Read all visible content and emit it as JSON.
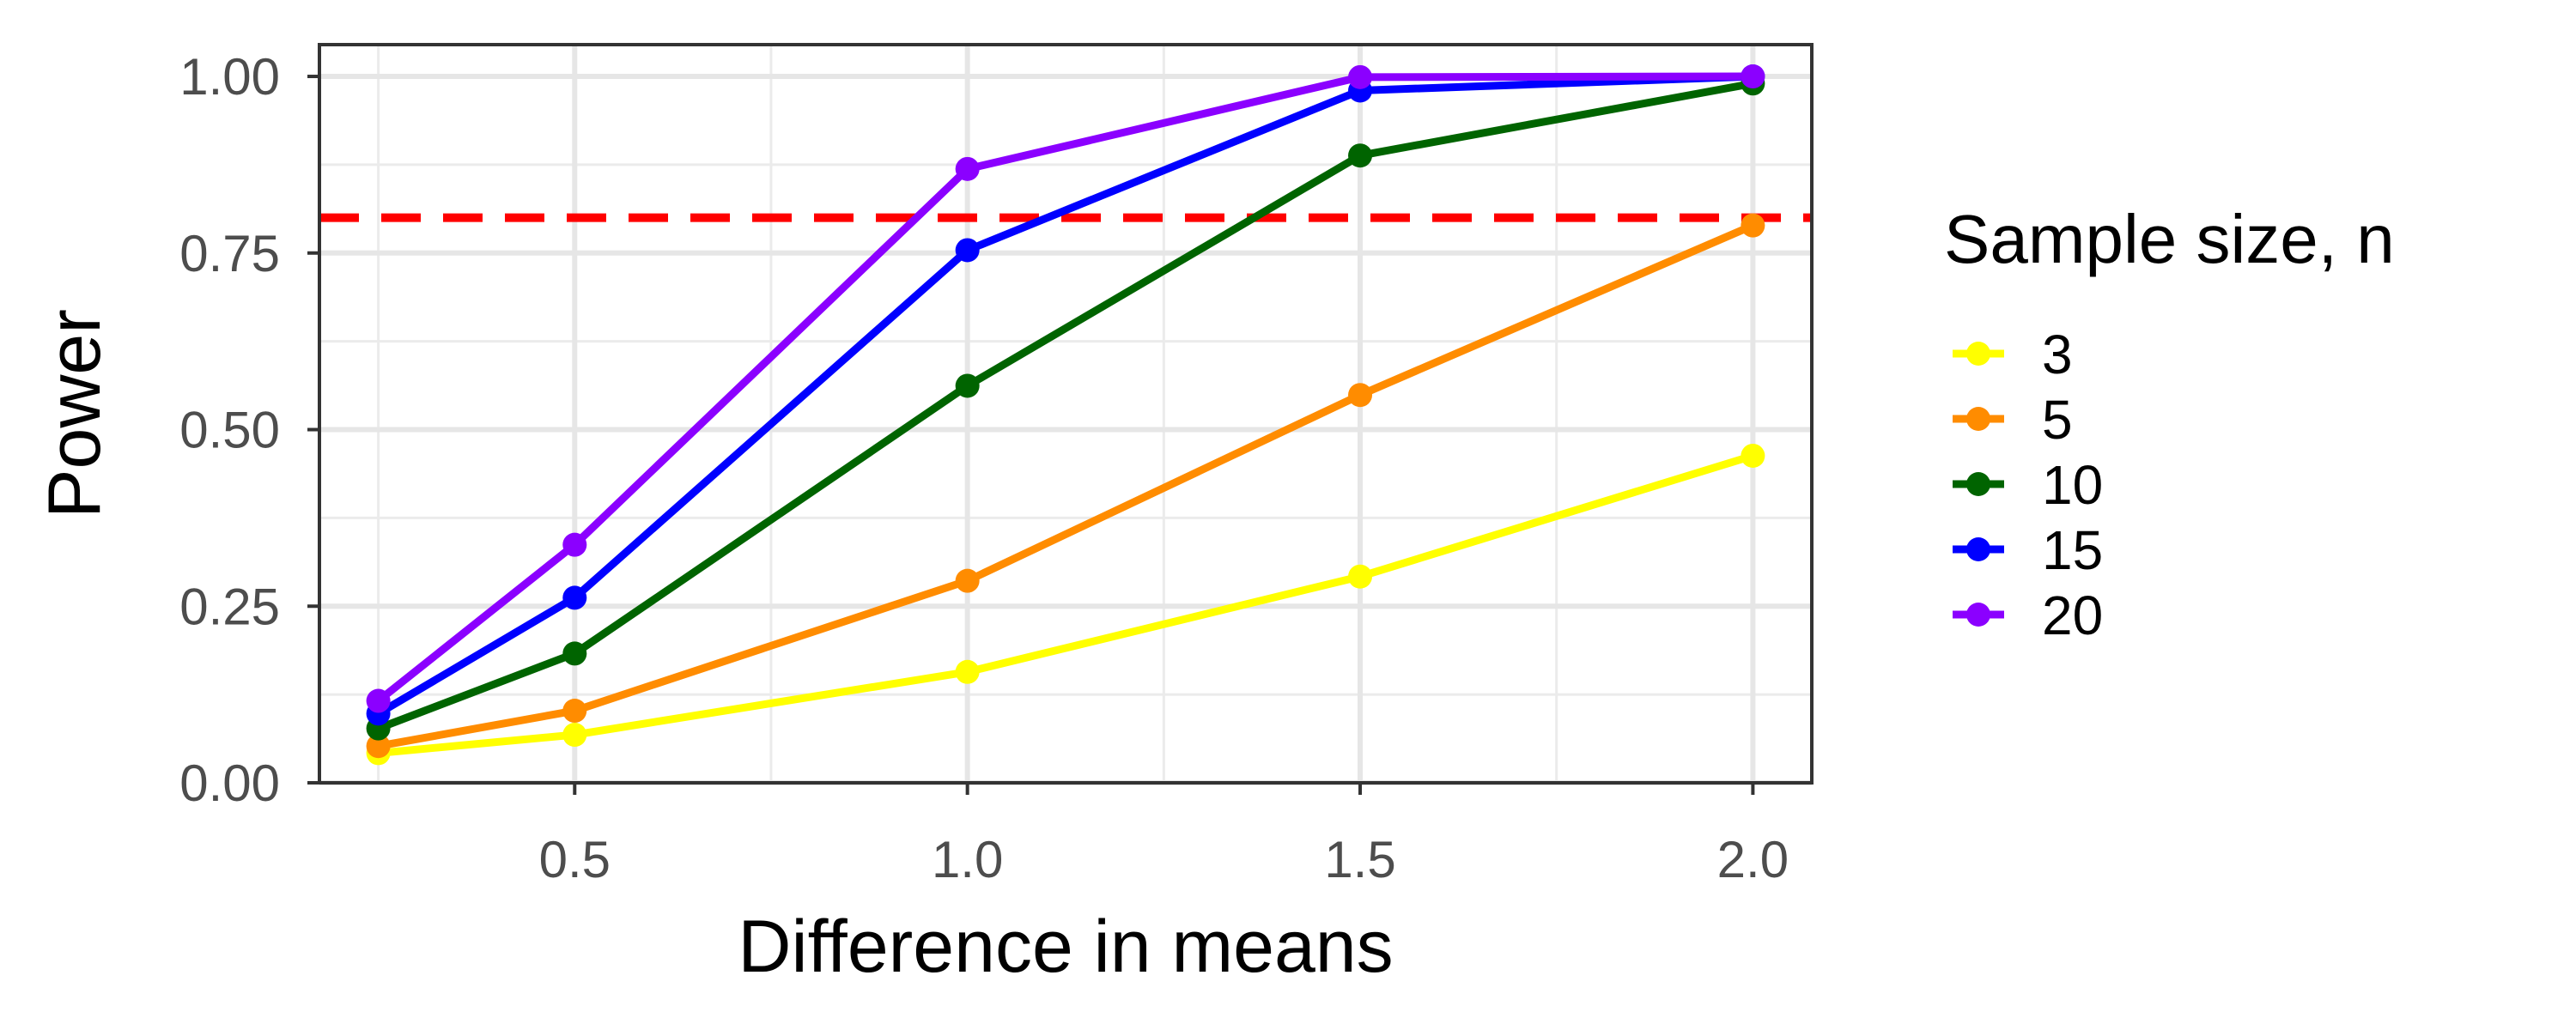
{
  "chart_data": {
    "type": "line",
    "xlabel": "Difference in means",
    "ylabel": "Power",
    "xlim": [
      0.175,
      2.075
    ],
    "ylim": [
      0,
      1.045
    ],
    "x_ticks": [
      {
        "value": 0.5,
        "label": "0.5"
      },
      {
        "value": 1.0,
        "label": "1.0"
      },
      {
        "value": 1.5,
        "label": "1.5"
      },
      {
        "value": 2.0,
        "label": "2.0"
      }
    ],
    "y_ticks": [
      {
        "value": 0,
        "label": "0.00"
      },
      {
        "value": 0.25,
        "label": "0.25"
      },
      {
        "value": 0.5,
        "label": "0.50"
      },
      {
        "value": 0.75,
        "label": "0.75"
      },
      {
        "value": 1.0,
        "label": "1.00"
      }
    ],
    "x_minor": [
      0.25,
      0.75,
      1.25,
      1.75
    ],
    "y_minor": [
      0.125,
      0.375,
      0.625,
      0.875
    ],
    "grid": true,
    "reference_line": {
      "orientation": "horizontal",
      "y": 0.8,
      "color": "#ff0000",
      "style": "dashed"
    },
    "legend": {
      "title": "Sample size, n",
      "position": "right"
    },
    "x": [
      0.25,
      0.5,
      1.0,
      1.5,
      2.0
    ],
    "series": [
      {
        "name": "3",
        "color": "#ffff00",
        "values": [
          0.042,
          0.068,
          0.157,
          0.292,
          0.463
        ]
      },
      {
        "name": "5",
        "color": "#ff8c00",
        "values": [
          0.052,
          0.102,
          0.286,
          0.549,
          0.789
        ]
      },
      {
        "name": "10",
        "color": "#006400",
        "values": [
          0.077,
          0.183,
          0.562,
          0.888,
          0.99
        ]
      },
      {
        "name": "15",
        "color": "#0000ff",
        "values": [
          0.098,
          0.262,
          0.754,
          0.98,
          1.0
        ]
      },
      {
        "name": "20",
        "color": "#8b00ff",
        "values": [
          0.116,
          0.337,
          0.869,
          0.999,
          1.0
        ]
      }
    ]
  }
}
